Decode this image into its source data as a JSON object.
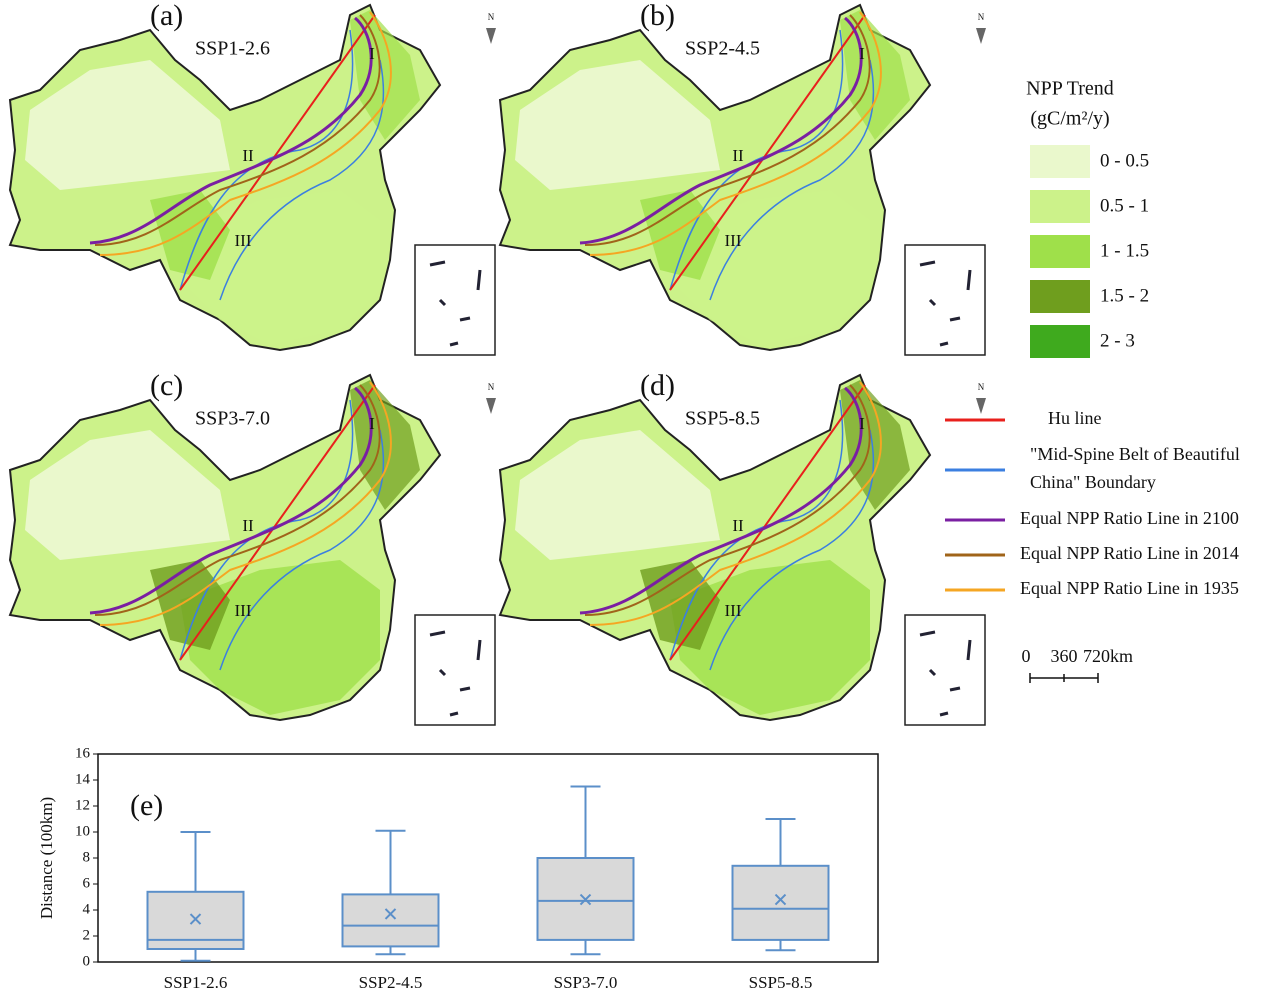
{
  "maps": [
    {
      "label": "(a)",
      "scenario": "SSP1-2.6"
    },
    {
      "label": "(b)",
      "scenario": "SSP2-4.5"
    },
    {
      "label": "(c)",
      "scenario": "SSP3-7.0"
    },
    {
      "label": "(d)",
      "scenario": "SSP5-8.5"
    }
  ],
  "north": "N",
  "regions": [
    "I",
    "II",
    "III"
  ],
  "legend": {
    "title": "NPP Trend",
    "unit": "(gC/m²/y)",
    "classes": [
      {
        "label": "0 - 0.5",
        "color": "#eaf8cc"
      },
      {
        "label": "0.5 - 1",
        "color": "#ccf28a"
      },
      {
        "label": "1 - 1.5",
        "color": "#9fe04a"
      },
      {
        "label": "1.5 - 2",
        "color": "#6f9e1e"
      },
      {
        "label": "2 - 3",
        "color": "#3faa1e"
      }
    ]
  },
  "lines": [
    {
      "label": [
        "Hu line"
      ],
      "color": "#e8201c"
    },
    {
      "label": [
        "\"Mid-Spine Belt of Beautiful",
        "China\" Boundary"
      ],
      "color": "#3b7fe0"
    },
    {
      "label": [
        "Equal NPP Ratio Line in 2100"
      ],
      "color": "#7a1fa2"
    },
    {
      "label": [
        "Equal NPP Ratio Line in 2014"
      ],
      "color": "#a0641a"
    },
    {
      "label": [
        "Equal NPP Ratio Line in 1935"
      ],
      "color": "#f5a623"
    }
  ],
  "scale_bar": [
    "0",
    "360",
    "720km"
  ],
  "chart_data": {
    "type": "box",
    "label": "(e)",
    "ylabel": "Distance (100km)",
    "categories": [
      "SSP1-2.6",
      "SSP2-4.5",
      "SSP3-7.0",
      "SSP5-8.5"
    ],
    "min": [
      0.1,
      0.6,
      0.6,
      0.9
    ],
    "q1": [
      1.0,
      1.2,
      1.7,
      1.7
    ],
    "median": [
      1.7,
      2.8,
      4.7,
      4.1
    ],
    "q3": [
      5.4,
      5.2,
      8.0,
      7.4
    ],
    "max": [
      10.0,
      10.1,
      13.5,
      11.0
    ],
    "mean": [
      3.3,
      3.7,
      4.8,
      4.8
    ],
    "color": "#5b8fc9",
    "box_fill": "#d9d9d9",
    "ylim": [
      0,
      16
    ],
    "yticks": [
      0,
      2,
      4,
      6,
      8,
      10,
      12,
      14,
      16
    ]
  }
}
